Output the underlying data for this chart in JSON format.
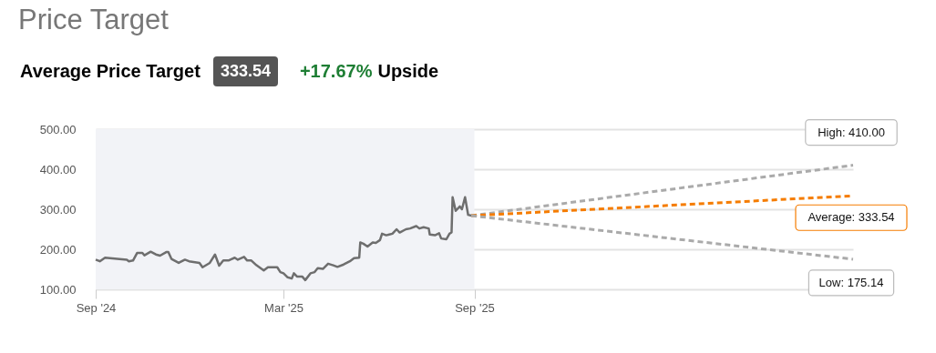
{
  "chart_data": {
    "type": "line",
    "title": "Price Target",
    "subtitle": "Average Price Target",
    "annotations": [
      "333.54",
      "+17.67%",
      "Upside",
      {
        "text": "High: 410.00",
        "x": "2026-09-01",
        "y": 410
      },
      {
        "text": "Average: 333.54",
        "x": "2026-09-01",
        "y": 333.54
      },
      {
        "text": "Low: 175.14",
        "x": "2026-09-01",
        "y": 175.14
      }
    ],
    "series": [
      {
        "color": "#6e6e6e",
        "line_style": "solid",
        "x": [
          "2024-09-01",
          "2024-09-05",
          "2024-09-10",
          "2024-10-01",
          "2024-10-03",
          "2024-10-07",
          "2024-10-11",
          "2024-10-16",
          "2024-10-18",
          "2024-10-24",
          "2024-10-29",
          "2024-11-02",
          "2024-11-08",
          "2024-11-10",
          "2024-11-13",
          "2024-11-20",
          "2024-11-26",
          "2024-11-30",
          "2024-12-10",
          "2024-12-13",
          "2024-12-20",
          "2024-12-25",
          "2024-12-29",
          "2025-01-02",
          "2025-01-07",
          "2025-01-13",
          "2025-01-16",
          "2025-01-22",
          "2025-01-25",
          "2025-01-29",
          "2025-02-03",
          "2025-02-10",
          "2025-02-14",
          "2025-02-23",
          "2025-02-26",
          "2025-03-01",
          "2025-03-05",
          "2025-03-09",
          "2025-03-11",
          "2025-03-14",
          "2025-03-19",
          "2025-03-22",
          "2025-03-27",
          "2025-03-31",
          "2025-04-03",
          "2025-04-08",
          "2025-04-13",
          "2025-04-18",
          "2025-04-22",
          "2025-04-28",
          "2025-05-04",
          "2025-05-08",
          "2025-05-13",
          "2025-05-14",
          "2025-05-17",
          "2025-05-21",
          "2025-05-26",
          "2025-05-29",
          "2025-06-02",
          "2025-06-04",
          "2025-06-08",
          "2025-06-11",
          "2025-06-14",
          "2025-06-18",
          "2025-06-21",
          "2025-06-27",
          "2025-07-01",
          "2025-07-07",
          "2025-07-10",
          "2025-07-14",
          "2025-07-19",
          "2025-07-20",
          "2025-07-25",
          "2025-07-29",
          "2025-07-31",
          "2025-08-05",
          "2025-08-08",
          "2025-08-10",
          "2025-08-11",
          "2025-08-14",
          "2025-08-18",
          "2025-08-20",
          "2025-08-23",
          "2025-08-26",
          "2025-08-29"
        ],
        "values": [
          174,
          170,
          179,
          174,
          170,
          172,
          191,
          191,
          185,
          194,
          187,
          184,
          193,
          193,
          176,
          166,
          174,
          170,
          166,
          155,
          166,
          187,
          159,
          172,
          172,
          179,
          174,
          181,
          172,
          172,
          160,
          147,
          155,
          155,
          143,
          140,
          130,
          127,
          140,
          132,
          132,
          123,
          140,
          143,
          153,
          151,
          164,
          160,
          156,
          162,
          170,
          178,
          179,
          217,
          214,
          207,
          217,
          216,
          223,
          239,
          235,
          237,
          239,
          250,
          242,
          250,
          252,
          258,
          252,
          255,
          252,
          237,
          235,
          240,
          227,
          225,
          239,
          242,
          330,
          296,
          307,
          300,
          330,
          286,
          284
        ]
      },
      {
        "color": "#aaaaaa",
        "line_style": "dashed",
        "x": [
          "2025-08-29",
          "2026-09-01"
        ],
        "values": [
          284,
          410
        ]
      },
      {
        "color": "#f57c00",
        "line_style": "dashed",
        "x": [
          "2025-08-29",
          "2026-09-01"
        ],
        "values": [
          284,
          333.54
        ]
      },
      {
        "color": "#aaaaaa",
        "line_style": "dashed",
        "x": [
          "2025-08-29",
          "2026-09-01"
        ],
        "values": [
          284,
          175.14
        ]
      }
    ],
    "xlim": [
      "2024-09-01",
      "2026-09-01"
    ],
    "xticks": [
      {
        "value": "2024-09-01",
        "label": "Sep '24"
      },
      {
        "value": "2025-03-01",
        "label": "Mar '25"
      },
      {
        "value": "2025-09-01",
        "label": "Sep '25"
      }
    ],
    "ylim": [
      100,
      500
    ],
    "yticks": [
      {
        "value": 100,
        "label": "100.00"
      },
      {
        "value": 200,
        "label": "200.00"
      },
      {
        "value": 300,
        "label": "300.00"
      },
      {
        "value": 400,
        "label": "400.00"
      },
      {
        "value": 500,
        "label": "500.00"
      }
    ],
    "bands": [
      {
        "axis": "x",
        "from": "2024-09-01",
        "to": "2025-09-01",
        "color": "#f2f3f7"
      }
    ],
    "grid": "y",
    "marker": "none"
  }
}
